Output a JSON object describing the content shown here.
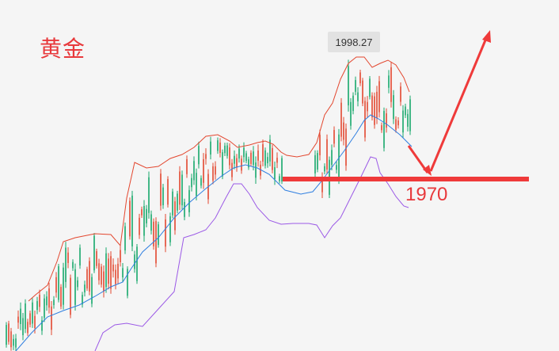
{
  "title": "黄金",
  "peak_label": "1998.27",
  "level_label": "1970",
  "colors": {
    "upper_band": "#e3472f",
    "middle_band": "#2f7fe0",
    "lower_band": "#9b59e6",
    "candle_up": "#e3472f",
    "candle_down": "#17a86b",
    "annotation": "#ef3a3a"
  },
  "chart_data": {
    "type": "candlestick",
    "indicator": "bollinger-bands",
    "levels": [
      1970
    ],
    "max_price_marked": 1998.27,
    "grid": false
  }
}
